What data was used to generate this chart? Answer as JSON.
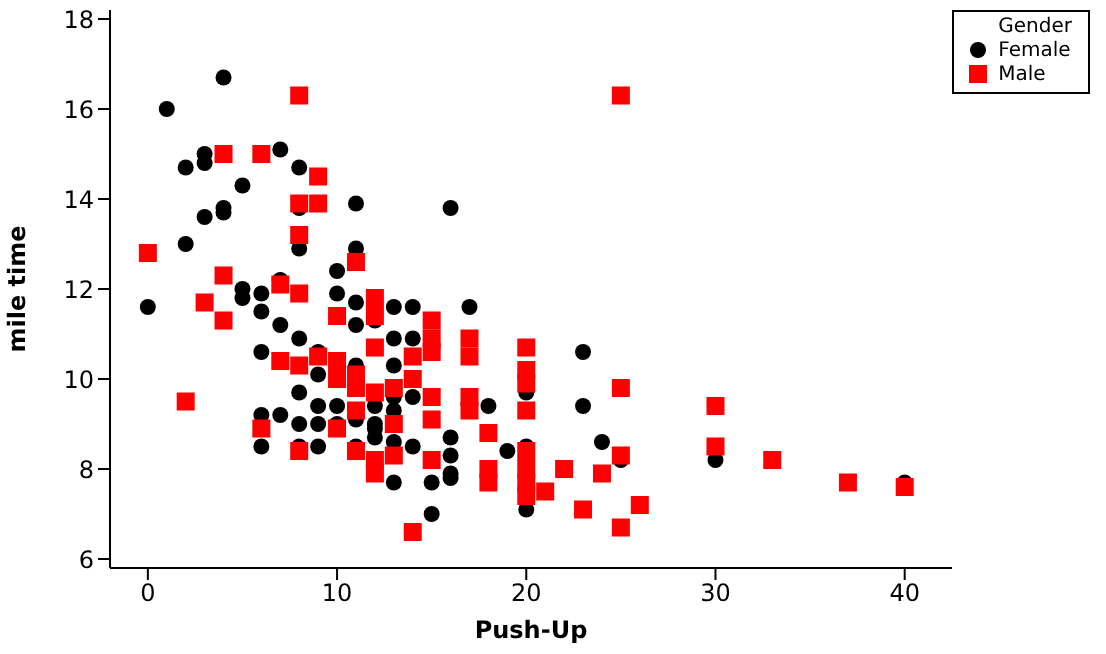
{
  "chart_data": {
    "type": "scatter",
    "xlabel": "Push-Up",
    "ylabel": "mile time",
    "legend_title": "Gender",
    "legend": "top right",
    "grid": false,
    "xlim": [
      -2,
      42.5
    ],
    "ylim": [
      5.8,
      18.2
    ],
    "xticks": [
      0,
      10,
      20,
      30,
      40
    ],
    "yticks": [
      6,
      8,
      10,
      12,
      14,
      16,
      18
    ],
    "series": [
      {
        "name": "Female",
        "color": "#000000",
        "marker": "circle",
        "x": [
          0,
          1,
          2,
          2,
          3,
          3,
          3,
          4,
          4,
          4,
          5,
          5,
          5,
          6,
          6,
          6,
          6,
          6,
          7,
          7,
          7,
          7,
          8,
          8,
          8,
          8,
          8,
          8,
          8,
          9,
          9,
          9,
          9,
          9,
          10,
          10,
          10,
          10,
          11,
          11,
          11,
          11,
          11,
          11,
          11,
          12,
          12,
          12,
          12,
          12,
          13,
          13,
          13,
          13,
          13,
          13,
          13,
          14,
          14,
          14,
          14,
          15,
          15,
          16,
          16,
          16,
          16,
          16,
          17,
          18,
          19,
          20,
          20,
          20,
          23,
          23,
          24,
          25,
          30,
          40
        ],
        "values": [
          11.6,
          16.0,
          13.0,
          14.7,
          14.8,
          15.0,
          13.6,
          16.7,
          13.8,
          13.7,
          14.3,
          12.0,
          11.8,
          11.9,
          11.5,
          10.6,
          9.2,
          8.5,
          15.1,
          12.2,
          11.2,
          9.2,
          14.7,
          13.8,
          12.9,
          10.9,
          9.7,
          9.0,
          8.5,
          10.6,
          10.1,
          9.4,
          9.0,
          8.5,
          12.4,
          11.9,
          9.4,
          9.0,
          13.9,
          12.9,
          11.7,
          11.2,
          10.3,
          9.1,
          8.5,
          11.3,
          9.4,
          9.0,
          8.9,
          8.7,
          11.6,
          10.9,
          10.3,
          9.6,
          9.3,
          8.6,
          7.7,
          11.6,
          10.9,
          9.6,
          8.5,
          7.7,
          7.0,
          13.8,
          8.7,
          8.3,
          7.8,
          7.9,
          11.6,
          9.4,
          8.4,
          9.7,
          8.5,
          7.1,
          10.6,
          9.4,
          8.6,
          8.2,
          8.2,
          7.7
        ]
      },
      {
        "name": "Male",
        "color": "#ff0000",
        "marker": "square",
        "x": [
          0,
          2,
          3,
          4,
          4,
          4,
          6,
          6,
          7,
          7,
          8,
          8,
          8,
          8,
          8,
          8,
          9,
          9,
          9,
          10,
          10,
          10,
          10,
          11,
          11,
          11,
          11,
          11,
          12,
          12,
          12,
          12,
          12,
          12,
          13,
          13,
          13,
          14,
          14,
          14,
          15,
          15,
          15,
          15,
          15,
          15,
          17,
          17,
          17,
          17,
          18,
          18,
          18,
          20,
          20,
          20,
          20,
          20,
          20,
          20,
          20,
          21,
          22,
          23,
          24,
          25,
          25,
          25,
          25,
          26,
          30,
          30,
          33,
          37,
          40
        ],
        "values": [
          12.8,
          9.5,
          11.7,
          15.0,
          12.3,
          11.3,
          15.0,
          8.9,
          12.1,
          10.4,
          16.3,
          13.9,
          13.2,
          11.9,
          10.3,
          8.4,
          14.5,
          13.9,
          10.5,
          11.4,
          10.4,
          10.0,
          8.9,
          12.6,
          10.1,
          9.8,
          9.3,
          8.4,
          11.8,
          11.4,
          10.7,
          9.7,
          8.2,
          7.9,
          9.8,
          9.0,
          8.3,
          10.5,
          10.0,
          6.6,
          11.3,
          10.9,
          10.6,
          9.6,
          9.1,
          8.2,
          10.9,
          10.5,
          9.6,
          9.3,
          8.8,
          8.0,
          7.7,
          10.7,
          10.2,
          9.9,
          9.3,
          8.4,
          8.0,
          7.7,
          7.4,
          7.5,
          8.0,
          7.1,
          7.9,
          16.3,
          9.8,
          8.3,
          6.7,
          7.2,
          9.4,
          8.5,
          8.2,
          7.7,
          7.6
        ]
      }
    ]
  }
}
